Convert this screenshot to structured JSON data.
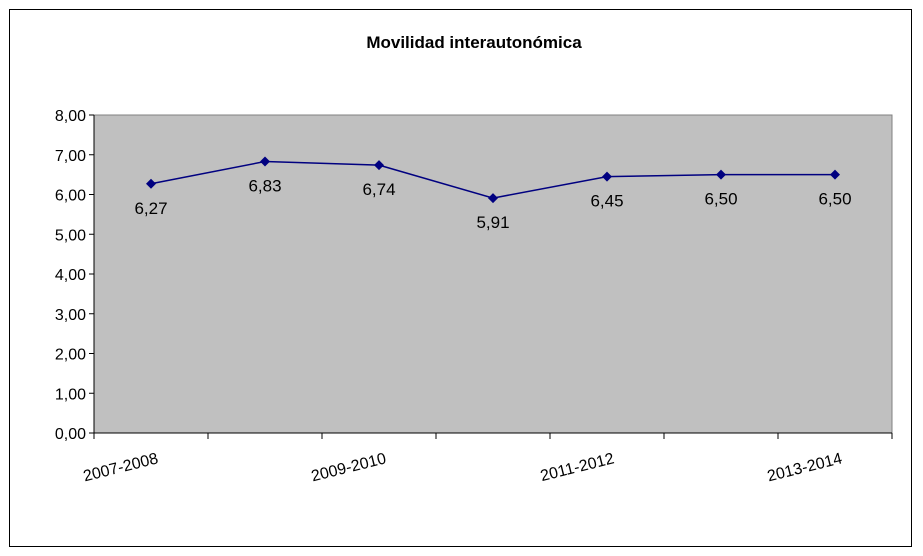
{
  "chart_data": {
    "type": "line",
    "title": "Movilidad interautonómica",
    "categories": [
      "2007-2008",
      "2008-2009",
      "2009-2010",
      "2010-2011",
      "2011-2012",
      "2012-2013",
      "2013-2014"
    ],
    "category_labels_shown": [
      "2007-2008",
      "",
      "2009-2010",
      "",
      "2011-2012",
      "",
      "2013-2014"
    ],
    "series": [
      {
        "values": [
          6.27,
          6.83,
          6.74,
          5.91,
          6.45,
          6.5,
          6.5
        ]
      }
    ],
    "data_labels": [
      "6,27",
      "6,83",
      "6,74",
      "5,91",
      "6,45",
      "6,50",
      "6,50"
    ],
    "y_ticks": [
      0,
      1,
      2,
      3,
      4,
      5,
      6,
      7,
      8
    ],
    "y_tick_labels": [
      "0,00",
      "1,00",
      "2,00",
      "3,00",
      "4,00",
      "5,00",
      "6,00",
      "7,00",
      "8,00"
    ],
    "ylim": [
      0,
      8
    ],
    "grid": false,
    "legend": "none",
    "colors": {
      "line": "#000080",
      "marker": "#000080",
      "plot_area": "#c0c0c0"
    }
  }
}
